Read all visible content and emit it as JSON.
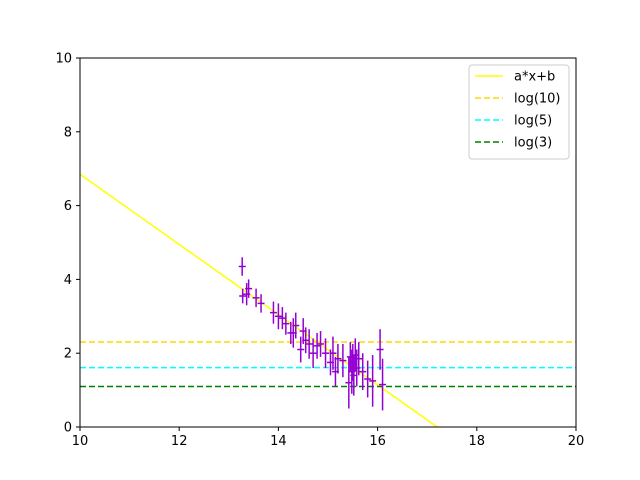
{
  "chart_data": {
    "type": "scatter",
    "xlim": [
      10,
      20
    ],
    "ylim": [
      0,
      10
    ],
    "x_ticks": [
      "10",
      "12",
      "14",
      "16",
      "18",
      "20"
    ],
    "y_ticks": [
      "0",
      "2",
      "4",
      "6",
      "8",
      "10"
    ],
    "grid": false,
    "legend_placement": "top-right",
    "fit_line": {
      "name": "a*x+b",
      "color": "#ffff00",
      "points": [
        [
          10,
          6.85
        ],
        [
          17.2,
          0
        ]
      ]
    },
    "reference_lines": [
      {
        "name": "log(10)",
        "y": 2.303,
        "color": "#ffd700",
        "style": "dashed"
      },
      {
        "name": "log(5)",
        "y": 1.609,
        "color": "#00ffff",
        "style": "dashed"
      },
      {
        "name": "log(3)",
        "y": 1.099,
        "color": "#008000",
        "style": "dashed"
      }
    ],
    "points_color": "#9400d3",
    "points": [
      {
        "x": 13.27,
        "y": 4.35,
        "yerr": 0.25
      },
      {
        "x": 13.28,
        "y": 3.55,
        "yerr": 0.2
      },
      {
        "x": 13.36,
        "y": 3.6,
        "yerr": 0.3
      },
      {
        "x": 13.4,
        "y": 3.75,
        "yerr": 0.25
      },
      {
        "x": 13.55,
        "y": 3.5,
        "yerr": 0.25
      },
      {
        "x": 13.65,
        "y": 3.35,
        "yerr": 0.25
      },
      {
        "x": 13.9,
        "y": 3.1,
        "yerr": 0.3
      },
      {
        "x": 14.0,
        "y": 3.0,
        "yerr": 0.35
      },
      {
        "x": 14.08,
        "y": 2.95,
        "yerr": 0.3
      },
      {
        "x": 14.15,
        "y": 2.8,
        "yerr": 0.3
      },
      {
        "x": 14.25,
        "y": 2.55,
        "yerr": 0.3
      },
      {
        "x": 14.3,
        "y": 2.55,
        "yerr": 0.4
      },
      {
        "x": 14.35,
        "y": 2.75,
        "yerr": 0.35
      },
      {
        "x": 14.45,
        "y": 2.1,
        "yerr": 0.35
      },
      {
        "x": 14.5,
        "y": 2.6,
        "yerr": 0.35
      },
      {
        "x": 14.55,
        "y": 2.35,
        "yerr": 0.35
      },
      {
        "x": 14.62,
        "y": 2.25,
        "yerr": 0.4
      },
      {
        "x": 14.7,
        "y": 2.0,
        "yerr": 0.4
      },
      {
        "x": 14.78,
        "y": 2.2,
        "yerr": 0.35
      },
      {
        "x": 14.85,
        "y": 2.25,
        "yerr": 0.35
      },
      {
        "x": 14.95,
        "y": 2.0,
        "yerr": 0.4
      },
      {
        "x": 15.05,
        "y": 1.75,
        "yerr": 0.35
      },
      {
        "x": 15.1,
        "y": 2.0,
        "yerr": 0.45
      },
      {
        "x": 15.15,
        "y": 1.5,
        "yerr": 0.4
      },
      {
        "x": 15.2,
        "y": 1.85,
        "yerr": 0.4
      },
      {
        "x": 15.3,
        "y": 1.8,
        "yerr": 0.45
      },
      {
        "x": 15.42,
        "y": 1.2,
        "yerr": 0.7
      },
      {
        "x": 15.45,
        "y": 1.9,
        "yerr": 0.4
      },
      {
        "x": 15.48,
        "y": 1.5,
        "yerr": 0.6
      },
      {
        "x": 15.5,
        "y": 1.75,
        "yerr": 0.5
      },
      {
        "x": 15.52,
        "y": 1.4,
        "yerr": 0.55
      },
      {
        "x": 15.55,
        "y": 1.95,
        "yerr": 0.45
      },
      {
        "x": 15.58,
        "y": 1.6,
        "yerr": 0.5
      },
      {
        "x": 15.62,
        "y": 1.85,
        "yerr": 0.45
      },
      {
        "x": 15.7,
        "y": 1.5,
        "yerr": 0.5
      },
      {
        "x": 15.8,
        "y": 1.3,
        "yerr": 0.5
      },
      {
        "x": 15.9,
        "y": 1.25,
        "yerr": 0.7
      },
      {
        "x": 16.05,
        "y": 2.1,
        "yerr": 0.55
      },
      {
        "x": 16.1,
        "y": 1.15,
        "yerr": 0.7
      }
    ]
  }
}
